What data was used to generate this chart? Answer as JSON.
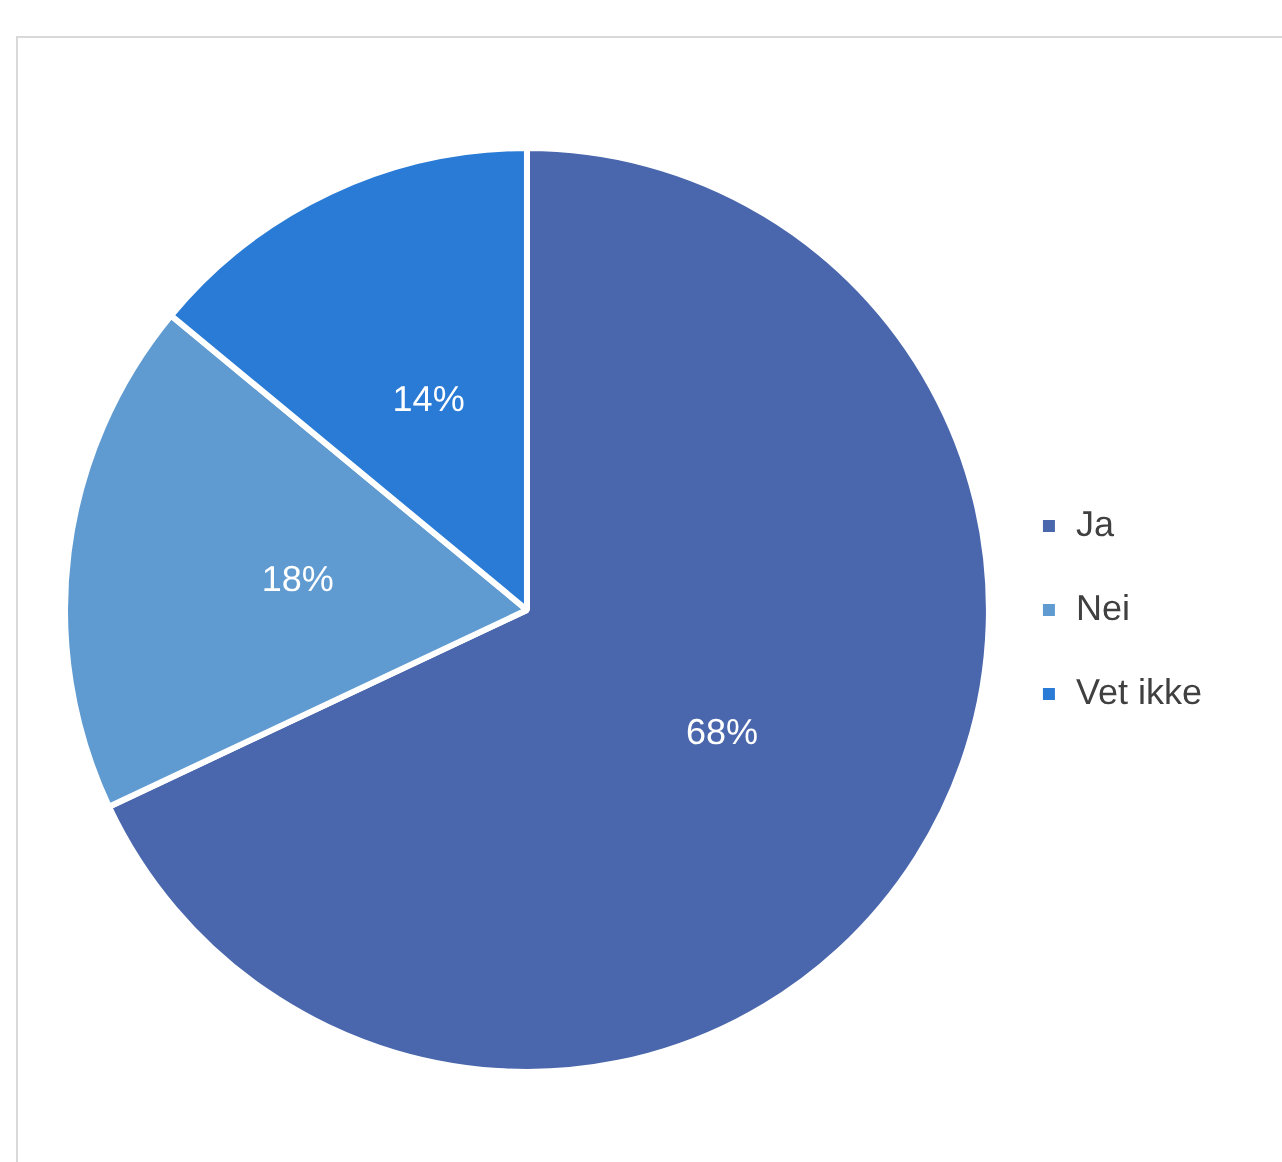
{
  "chart_data": {
    "type": "pie",
    "categories": [
      "Ja",
      "Nei",
      "Vet ikke"
    ],
    "values": [
      68,
      18,
      14
    ],
    "colors": [
      "#4a67ad",
      "#5f9bd1",
      "#2a7bd6"
    ],
    "value_labels": [
      "68%",
      "18%",
      "14%"
    ],
    "legend": "right"
  }
}
